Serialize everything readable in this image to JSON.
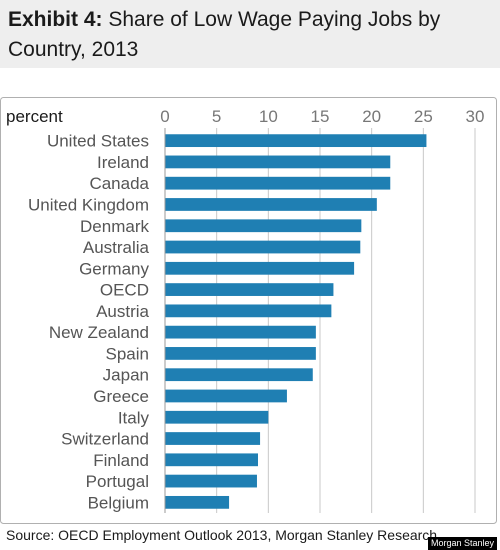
{
  "header": {
    "title_prefix": "Exhibit 4:",
    "title_line1": "Share of Low Wage Paying Jobs by",
    "title_line2": "Country, 2013"
  },
  "chart_data": {
    "type": "bar",
    "orientation": "horizontal",
    "ylabel": "percent",
    "xlim": [
      0,
      30
    ],
    "xticks": [
      0,
      5,
      10,
      15,
      20,
      25,
      30
    ],
    "grid": true,
    "bar_color": "#1f7fb3",
    "categories": [
      "United States",
      "Ireland",
      "Canada",
      "United Kingdom",
      "Denmark",
      "Australia",
      "Germany",
      "OECD",
      "Austria",
      "New Zealand",
      "Spain",
      "Japan",
      "Greece",
      "Italy",
      "Switzerland",
      "Finland",
      "Portugal",
      "Belgium"
    ],
    "values": [
      25.3,
      21.8,
      21.8,
      20.5,
      19.0,
      18.9,
      18.3,
      16.3,
      16.1,
      14.6,
      14.6,
      14.3,
      11.8,
      10.0,
      9.2,
      9.0,
      8.9,
      6.2
    ]
  },
  "footer": {
    "source": "Source: OECD Employment Outlook 2013, Morgan Stanley Research",
    "watermark": "Morgan Stanley"
  }
}
